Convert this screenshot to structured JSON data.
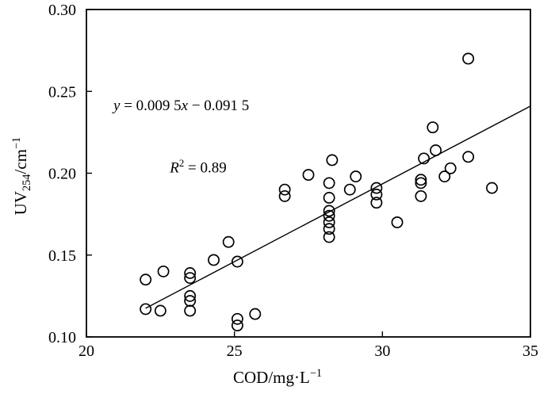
{
  "figure": {
    "background_color": "#ffffff",
    "ink_color": "#000000"
  },
  "annotation": {
    "var_y": "y",
    "eq_mid": " = 0.009 5",
    "var_x": "x",
    "eq_end": " − 0.091 5",
    "r_symbol": "R",
    "r_exponent": "2",
    "r_value": " = 0.89"
  },
  "axes": {
    "x": {
      "label": "COD/mg·L",
      "label_sup": "−1",
      "tick_labels": [
        "20",
        "25",
        "30",
        "35"
      ]
    },
    "y": {
      "label_prefix": "UV",
      "label_sub": "254",
      "label_unit": "/cm",
      "label_sup": "−1",
      "tick_labels": [
        "0.10",
        "0.15",
        "0.20",
        "0.25",
        "0.30"
      ]
    }
  },
  "chart_data": {
    "type": "scatter",
    "title": "",
    "xlabel": "COD/mg·L−1",
    "ylabel": "UV254/cm−1",
    "xlim": [
      20,
      35
    ],
    "ylim": [
      0.1,
      0.3
    ],
    "x_ticks": [
      20,
      25,
      30,
      35
    ],
    "y_ticks": [
      0.1,
      0.15,
      0.2,
      0.25,
      0.3
    ],
    "grid": false,
    "marker": {
      "shape": "circle",
      "fill": "none",
      "stroke": "#000000"
    },
    "points": [
      [
        22.0,
        0.135
      ],
      [
        22.0,
        0.117
      ],
      [
        22.5,
        0.116
      ],
      [
        22.6,
        0.14
      ],
      [
        23.5,
        0.139
      ],
      [
        23.5,
        0.136
      ],
      [
        23.5,
        0.125
      ],
      [
        23.5,
        0.122
      ],
      [
        23.5,
        0.116
      ],
      [
        24.3,
        0.147
      ],
      [
        24.8,
        0.158
      ],
      [
        25.1,
        0.146
      ],
      [
        25.1,
        0.111
      ],
      [
        25.1,
        0.107
      ],
      [
        25.7,
        0.114
      ],
      [
        26.7,
        0.19
      ],
      [
        26.7,
        0.186
      ],
      [
        27.5,
        0.199
      ],
      [
        28.3,
        0.208
      ],
      [
        28.2,
        0.194
      ],
      [
        28.2,
        0.185
      ],
      [
        28.2,
        0.177
      ],
      [
        28.2,
        0.174
      ],
      [
        28.2,
        0.17
      ],
      [
        28.2,
        0.166
      ],
      [
        28.2,
        0.161
      ],
      [
        28.9,
        0.19
      ],
      [
        29.1,
        0.198
      ],
      [
        29.8,
        0.191
      ],
      [
        29.8,
        0.187
      ],
      [
        29.8,
        0.182
      ],
      [
        30.5,
        0.17
      ],
      [
        31.3,
        0.196
      ],
      [
        31.3,
        0.194
      ],
      [
        31.3,
        0.186
      ],
      [
        31.4,
        0.209
      ],
      [
        31.7,
        0.228
      ],
      [
        31.8,
        0.214
      ],
      [
        32.1,
        0.198
      ],
      [
        32.3,
        0.203
      ],
      [
        32.9,
        0.21
      ],
      [
        32.9,
        0.27
      ],
      [
        33.7,
        0.191
      ]
    ],
    "trendline": {
      "slope": 0.0095,
      "intercept": -0.0915,
      "x_start": 22.0,
      "x_end": 35.0,
      "equation_label": "y = 0.009 5x − 0.091 5",
      "r2_label": "R2 = 0.89"
    }
  }
}
